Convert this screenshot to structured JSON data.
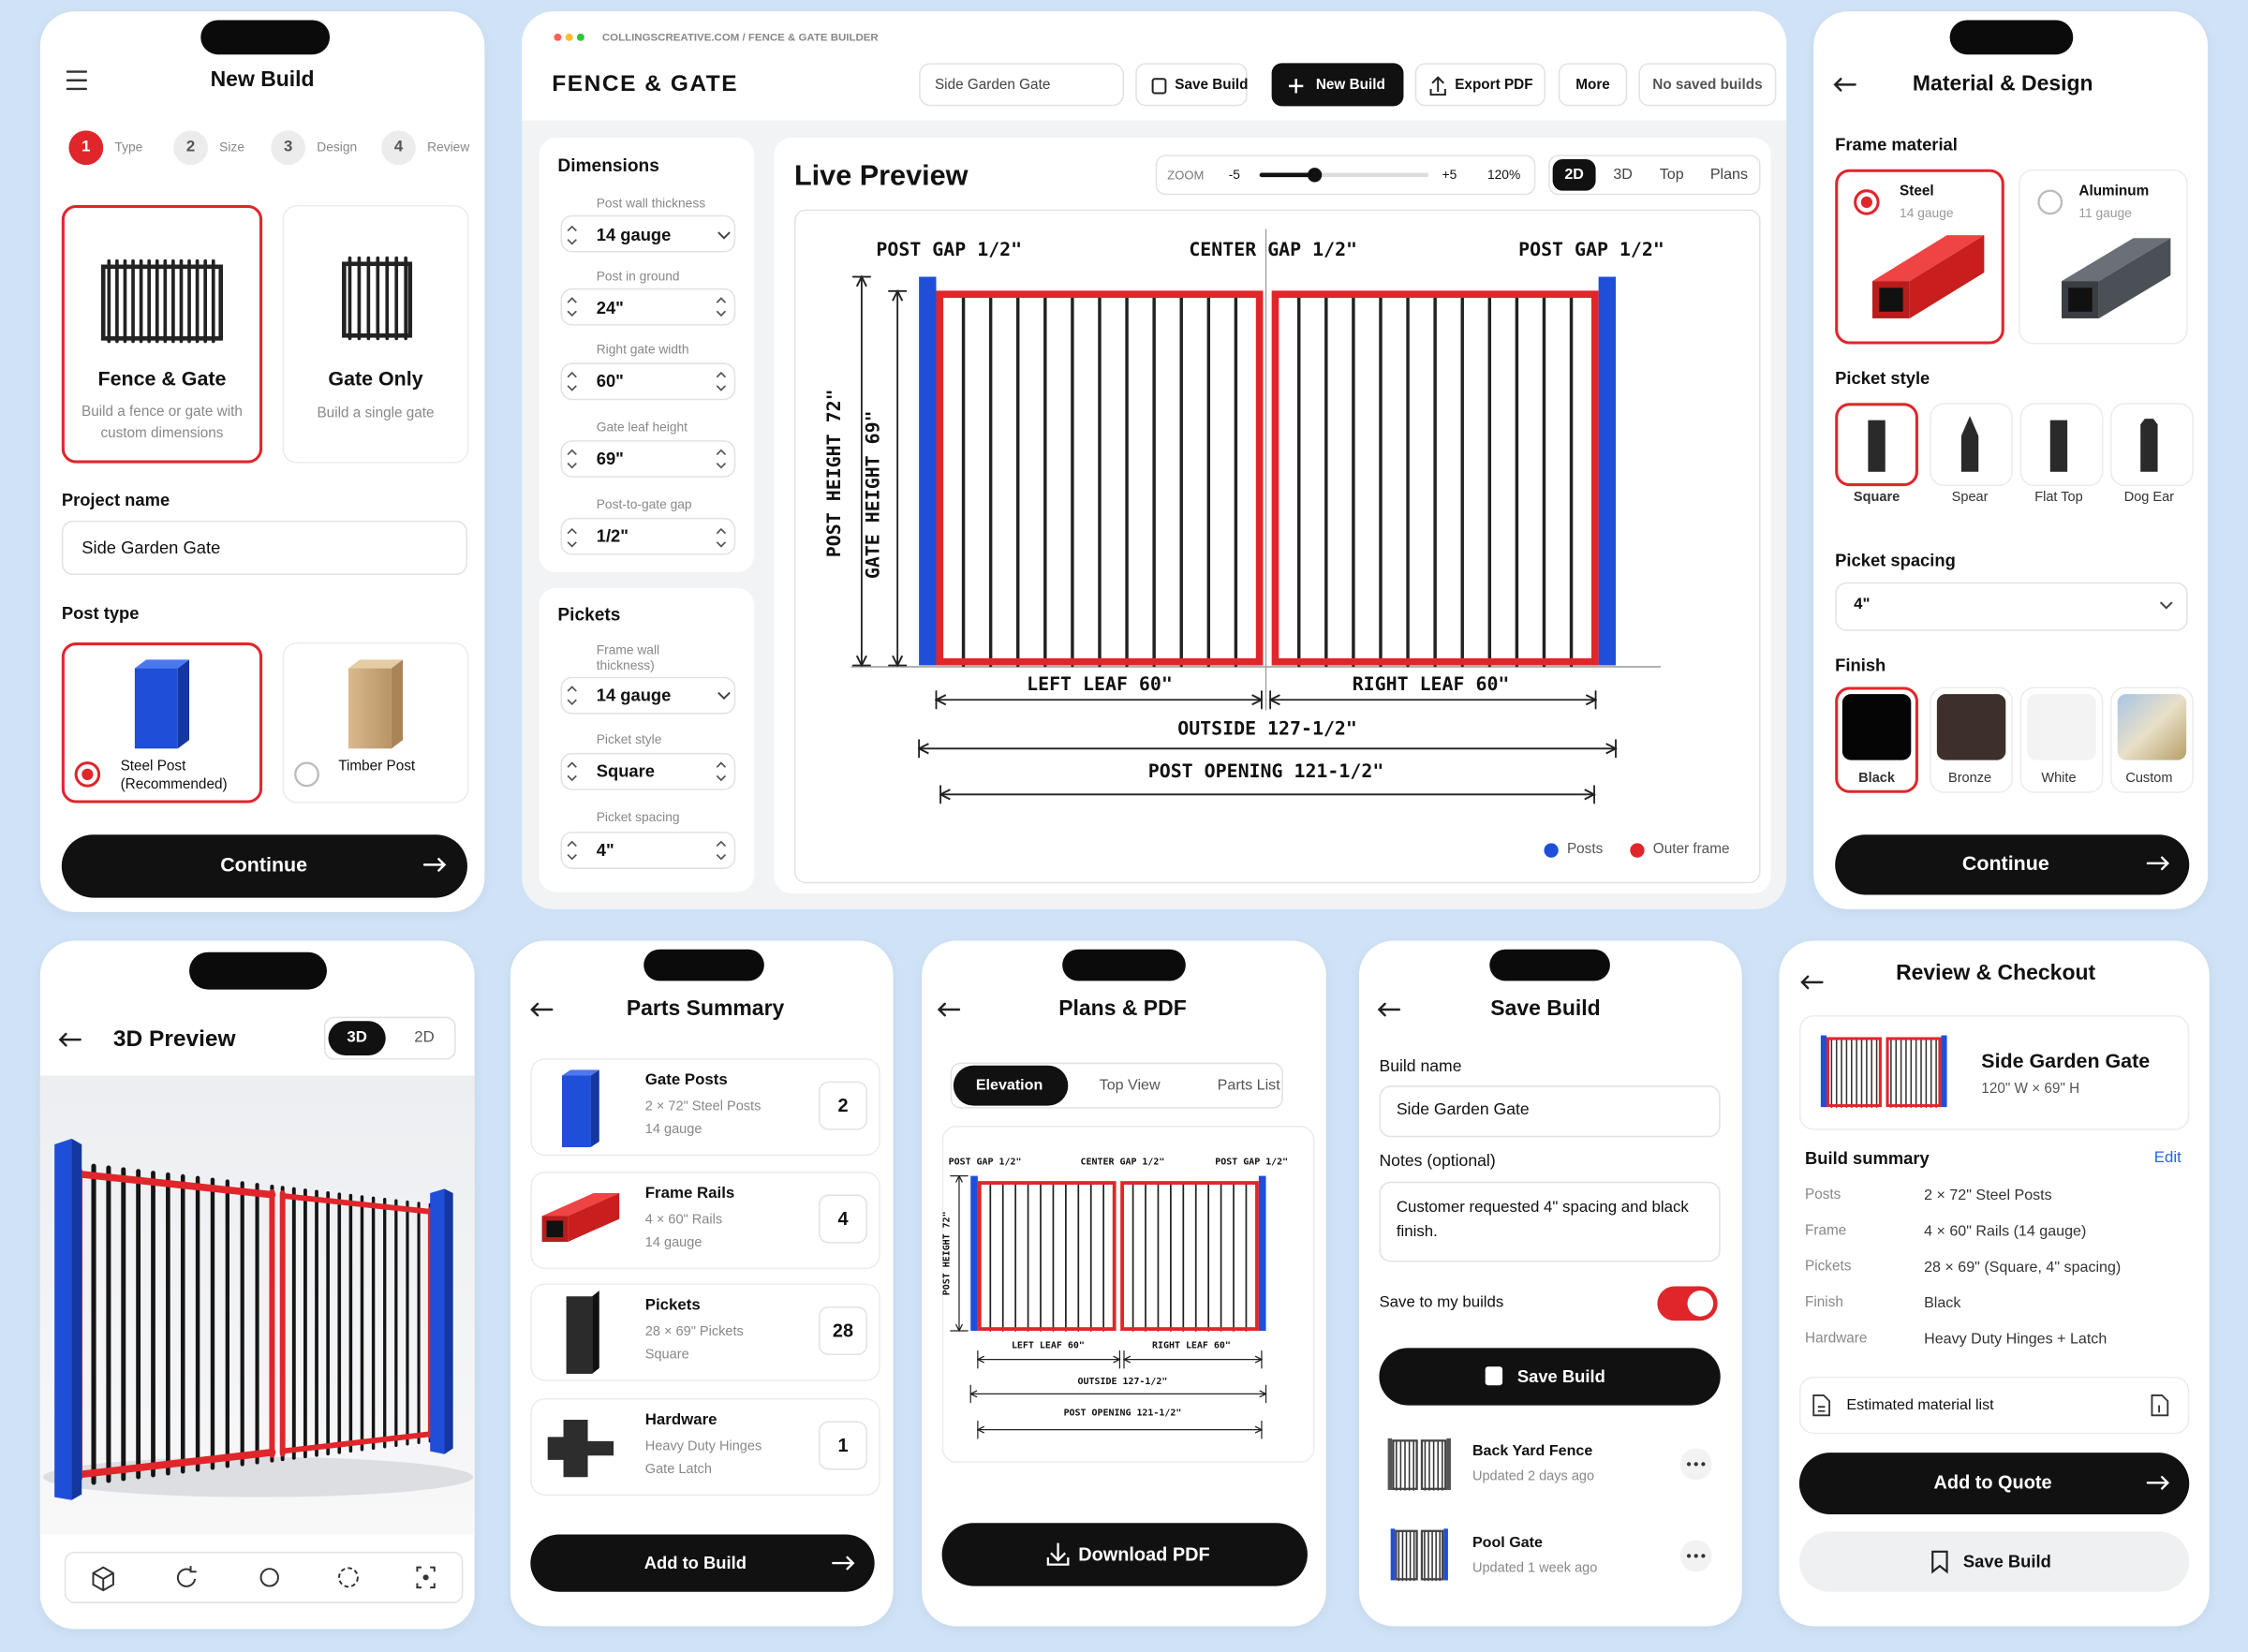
{
  "new_build": {
    "title": "New Build",
    "steps": [
      {
        "number": 1,
        "label": "Type"
      },
      {
        "number": 2,
        "label": "Size"
      },
      {
        "number": 3,
        "label": "Design"
      },
      {
        "number": 4,
        "label": "Review"
      }
    ],
    "build_types": [
      {
        "title": "Fence & Gate",
        "description": "Build a fence or gate with custom dimensions"
      },
      {
        "title": "Gate Only",
        "description": "Build a single gate"
      }
    ],
    "project_name_label": "Project name",
    "project_name": "Side Garden Gate",
    "post_type_label": "Post type",
    "post_types": [
      "Steel Post (Recommended)",
      "Timber Post"
    ],
    "continue": "Continue"
  },
  "builder": {
    "url": "COLLINGSCREATIVE.COM / FENCE & GATE BUILDER",
    "brand": "FENCE & GATE",
    "project_name": "Side Garden Gate",
    "actions": [
      "Save Build",
      "New Build",
      "Export PDF",
      "More",
      "No saved builds"
    ],
    "dimensions": {
      "title": "Dimensions",
      "fields": [
        {
          "label": "Post wall thickness",
          "value": "14 gauge"
        },
        {
          "label": "Post in ground",
          "value": "24\""
        },
        {
          "label": "Right gate width",
          "value": "60\""
        },
        {
          "label": "Gate leaf height",
          "value": "69\""
        },
        {
          "label": "Post-to-gate gap",
          "value": "1/2\""
        }
      ]
    },
    "pickets": {
      "title": "Pickets",
      "fields": [
        {
          "label": "Frame wall thickness)",
          "value": "14 gauge"
        },
        {
          "label": "Picket style",
          "value": "Square"
        },
        {
          "label": "Picket spacing",
          "value": "4\""
        }
      ]
    },
    "preview": {
      "title": "Live Preview",
      "zoom_label": "ZOOM",
      "zoom_min": "-5",
      "zoom_max": "+5",
      "zoom": "120%",
      "views": [
        "2D",
        "3D",
        "Top",
        "Plans"
      ],
      "labels": {
        "left_post_gap": "POST GAP 1/2\"",
        "center_gap": "CENTER GAP 1/2\"",
        "right_post_gap": "POST GAP 1/2\"",
        "post_height": "POST HEIGHT 72\"",
        "gate_height": "GATE HEIGHT 69\"",
        "left_leaf": "LEFT LEAF 60\"",
        "right_leaf": "RIGHT LEAF 60\"",
        "outside": "OUTSIDE 127-1/2\"",
        "post_opening": "POST OPENING 121-1/2\""
      },
      "legend": [
        "Posts",
        "Outer frame"
      ]
    }
  },
  "material": {
    "title": "Material & Design",
    "frame_label": "Frame material",
    "frames": [
      {
        "name": "Steel",
        "gauge": "14 gauge"
      },
      {
        "name": "Aluminum",
        "gauge": "11 gauge"
      }
    ],
    "picket_style_label": "Picket style",
    "picket_styles": [
      "Square",
      "Spear",
      "Flat Top",
      "Dog Ear"
    ],
    "picket_spacing_label": "Picket spacing",
    "picket_spacing": "4\"",
    "finish_label": "Finish",
    "finishes": [
      "Black",
      "Bronze",
      "White",
      "Custom"
    ],
    "continue": "Continue"
  },
  "preview_3d": {
    "title": "3D Preview",
    "views": [
      "3D",
      "2D"
    ]
  },
  "parts": {
    "title": "Parts Summary",
    "items": [
      {
        "name": "Gate Posts",
        "details": [
          "2 × 72\" Steel Posts",
          "14 gauge"
        ],
        "quantity": 2
      },
      {
        "name": "Frame Rails",
        "details": [
          "4 × 60\" Rails",
          "14 gauge"
        ],
        "quantity": 4
      },
      {
        "name": "Pickets",
        "details": [
          "28 × 69\" Pickets",
          "Square"
        ],
        "quantity": 28
      },
      {
        "name": "Hardware",
        "details": [
          "Heavy Duty Hinges",
          "Gate Latch"
        ],
        "quantity": 1
      }
    ],
    "add": "Add to Build"
  },
  "plans": {
    "title": "Plans & PDF",
    "tabs": [
      "Elevation",
      "Top View",
      "Parts List"
    ],
    "labels": {
      "left_post_gap": "POST GAP 1/2\"",
      "center_gap": "CENTER GAP 1/2\"",
      "right_post_gap": "POST GAP 1/2\"",
      "post_height": "POST HEIGHT 72\"",
      "left_leaf": "LEFT LEAF 60\"",
      "right_leaf": "RIGHT LEAF 60\"",
      "outside": "OUTSIDE 127-1/2\"",
      "post_opening": "POST OPENING 121-1/2\""
    },
    "download": "Download PDF"
  },
  "save": {
    "title": "Save Build",
    "name_label": "Build name",
    "name": "Side Garden Gate",
    "notes_label": "Notes (optional)",
    "notes": "Customer requested 4\" spacing and black finish.",
    "save_to_label": "Save to my builds",
    "save_button": "Save Build",
    "saved": [
      {
        "name": "Back Yard Fence",
        "updated": "Updated 2 days ago"
      },
      {
        "name": "Pool Gate",
        "updated": "Updated 1 week ago"
      }
    ]
  },
  "review": {
    "title": "Review & Checkout",
    "build_name": "Side Garden Gate",
    "size": "120\" W × 69\" H",
    "summary_label": "Build summary",
    "edit": "Edit",
    "summary": [
      {
        "label": "Posts",
        "value": "2 × 72\" Steel Posts"
      },
      {
        "label": "Frame",
        "value": "4 × 60\" Rails (14 gauge)"
      },
      {
        "label": "Pickets",
        "value": "28 × 69\" (Square, 4\" spacing)"
      },
      {
        "label": "Finish",
        "value": "Black"
      },
      {
        "label": "Hardware",
        "value": "Heavy Duty Hinges + Latch"
      }
    ],
    "material_list": "Estimated material list",
    "add_to_quote": "Add to Quote",
    "save_button": "Save Build"
  }
}
